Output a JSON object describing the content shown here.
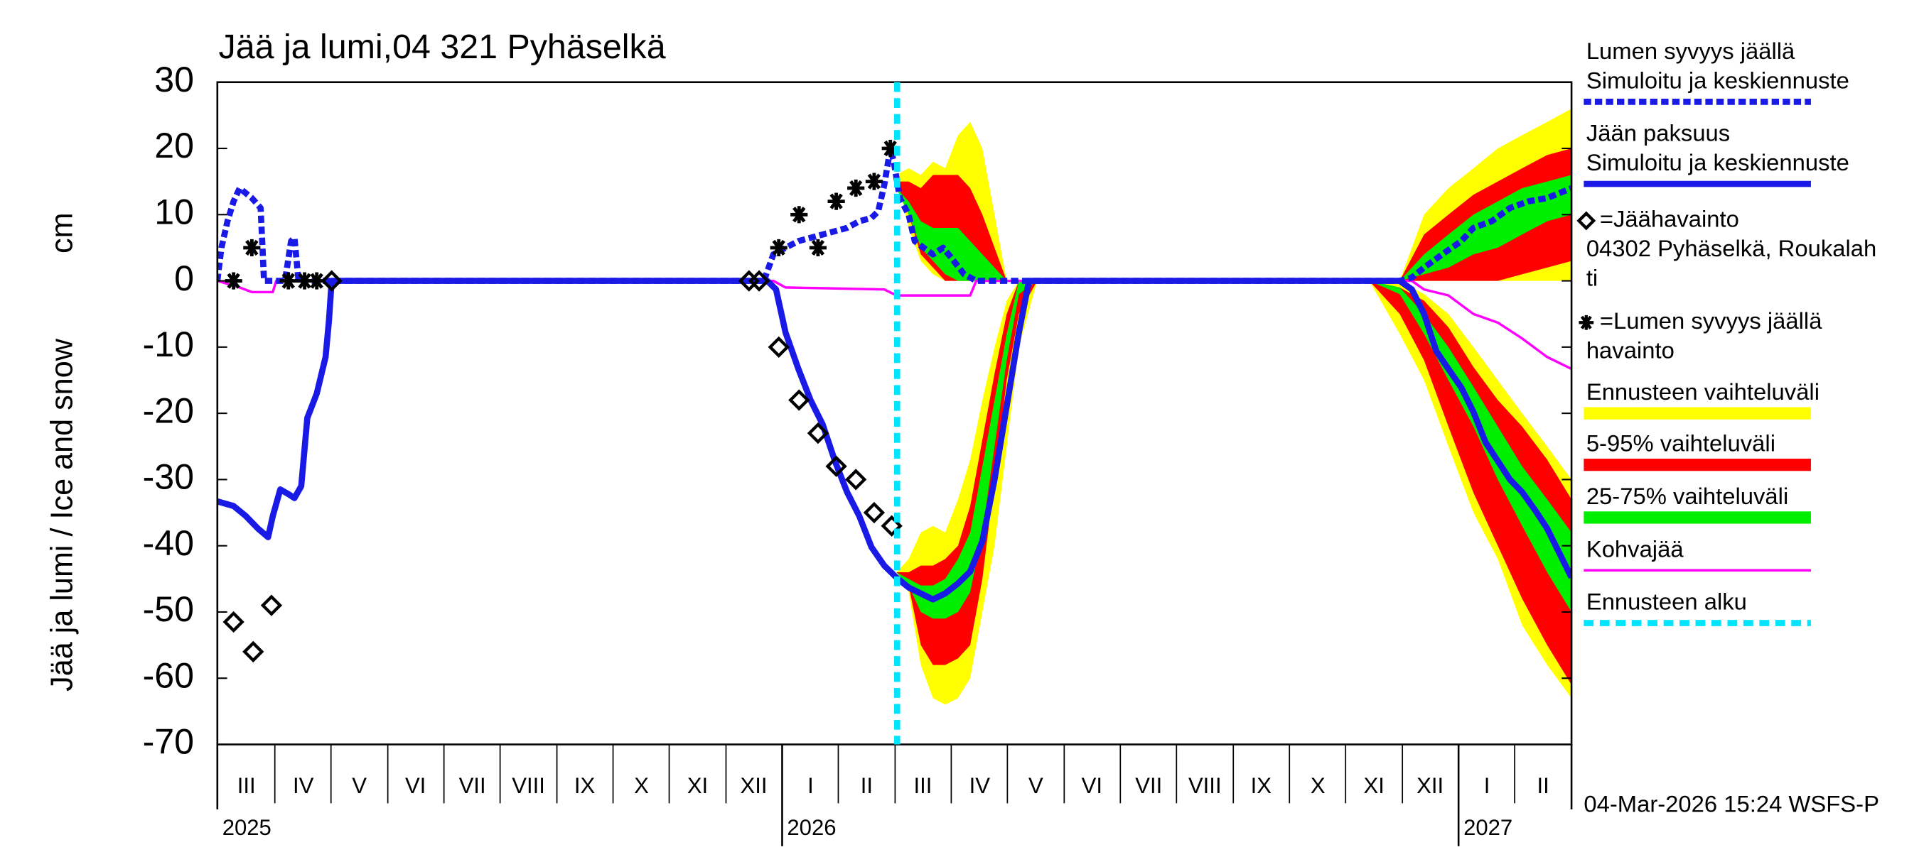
{
  "chart_data": {
    "type": "line",
    "title": "Jää ja lumi,04 321 Pyhäselkä",
    "y_label": "Jää ja lumi / Ice and snow",
    "y_unit": "cm",
    "footer": "04-Mar-2026 15:24 WSFS-P",
    "grid": false,
    "xlim": [
      2025.165,
      2027.167
    ],
    "ylim": [
      -70,
      30
    ],
    "yticks": [
      -70,
      -60,
      -50,
      -40,
      -30,
      -20,
      -10,
      0,
      10,
      20,
      30
    ],
    "xticks": [
      2025.25,
      2025.333,
      2025.417,
      2025.5,
      2025.583,
      2025.667,
      2025.75,
      2025.833,
      2025.917,
      2026,
      2026.083,
      2026.167,
      2026.25,
      2026.333,
      2026.417,
      2026.5,
      2026.583,
      2026.667,
      2026.75,
      2026.833,
      2026.917,
      2027,
      2027.083
    ],
    "month_labels": [
      {
        "value": 2025.208,
        "label": "III"
      },
      {
        "value": 2025.292,
        "label": "IV"
      },
      {
        "value": 2025.375,
        "label": "V"
      },
      {
        "value": 2025.458,
        "label": "VI"
      },
      {
        "value": 2025.542,
        "label": "VII"
      },
      {
        "value": 2025.625,
        "label": "VIII"
      },
      {
        "value": 2025.708,
        "label": "IX"
      },
      {
        "value": 2025.792,
        "label": "X"
      },
      {
        "value": 2025.875,
        "label": "XI"
      },
      {
        "value": 2025.958,
        "label": "XII"
      },
      {
        "value": 2026.042,
        "label": "I"
      },
      {
        "value": 2026.125,
        "label": "II"
      },
      {
        "value": 2026.208,
        "label": "III"
      },
      {
        "value": 2026.292,
        "label": "IV"
      },
      {
        "value": 2026.375,
        "label": "V"
      },
      {
        "value": 2026.458,
        "label": "VI"
      },
      {
        "value": 2026.542,
        "label": "VII"
      },
      {
        "value": 2026.625,
        "label": "VIII"
      },
      {
        "value": 2026.708,
        "label": "IX"
      },
      {
        "value": 2026.792,
        "label": "X"
      },
      {
        "value": 2026.875,
        "label": "XI"
      },
      {
        "value": 2026.958,
        "label": "XII"
      },
      {
        "value": 2027.042,
        "label": "I"
      },
      {
        "value": 2027.125,
        "label": "II"
      }
    ],
    "years": [
      2025,
      2026,
      2027
    ],
    "series": [
      {
        "name": [
          "Lumen syvyys jäällä",
          "Simuloitu ja keskiennuste"
        ],
        "color": "#1a1ae6",
        "style": "dashed",
        "x": [
          2025.165,
          2025.171,
          2025.18,
          2025.189,
          2025.198,
          2025.216,
          2025.229,
          2025.234,
          2025.265,
          2025.274,
          2025.279,
          2025.285,
          2025.973,
          2025.987,
          2026.005,
          2026.024,
          2026.042,
          2026.06,
          2026.078,
          2026.096,
          2026.114,
          2026.132,
          2026.142,
          2026.151,
          2026.16,
          2026.165,
          2026.174,
          2026.187,
          2026.196,
          2026.209,
          2026.223,
          2026.238,
          2026.25,
          2026.269,
          2026.287,
          2026.913,
          2026.931,
          2026.949,
          2026.976,
          2027.004,
          2027.022,
          2027.049,
          2027.076,
          2027.103,
          2027.131,
          2027.167
        ],
        "values": [
          0,
          5,
          9,
          12,
          14,
          12.5,
          11,
          0,
          0,
          6,
          6.5,
          0,
          0,
          4,
          5,
          6,
          6.5,
          7,
          7.5,
          8,
          9,
          9.5,
          10.5,
          14.5,
          20,
          18,
          12.5,
          10,
          6,
          5,
          4,
          5,
          3.5,
          1,
          0,
          0,
          0.5,
          2,
          4,
          6,
          8,
          9,
          11,
          12,
          12.5,
          14
        ]
      },
      {
        "name": [
          "Jään paksuus",
          "Simuloitu ja keskiennuste"
        ],
        "color": "#1a1ae6",
        "style": "solid",
        "x": [
          2025.165,
          2025.189,
          2025.207,
          2025.225,
          2025.24,
          2025.247,
          2025.258,
          2025.27,
          2025.279,
          2025.289,
          2025.298,
          2025.312,
          2025.325,
          2025.33,
          2025.334,
          2025.978,
          2025.991,
          2026.005,
          2026.024,
          2026.042,
          2026.06,
          2026.078,
          2026.096,
          2026.114,
          2026.132,
          2026.151,
          2026.169,
          2026.187,
          2026.205,
          2026.223,
          2026.241,
          2026.26,
          2026.278,
          2026.296,
          2026.314,
          2026.332,
          2026.35,
          2026.365,
          2026.913,
          2026.931,
          2026.949,
          2026.967,
          2026.985,
          2027.004,
          2027.022,
          2027.04,
          2027.058,
          2027.076,
          2027.094,
          2027.113,
          2027.131,
          2027.149,
          2027.167
        ],
        "values": [
          -33.3,
          -34,
          -35.5,
          -37.4,
          -38.7,
          -35.5,
          -31.5,
          -32.2,
          -32.8,
          -31,
          -20.7,
          -17,
          -11.5,
          -6,
          0,
          0,
          -1.3,
          -7.8,
          -13.3,
          -18,
          -21.7,
          -27.2,
          -31.9,
          -35.5,
          -40.2,
          -43,
          -44.8,
          -46.3,
          -47.2,
          -48.1,
          -47.2,
          -45.7,
          -43.9,
          -39.3,
          -30,
          -18.9,
          -7.8,
          0,
          0,
          -1.3,
          -5,
          -10.6,
          -13.3,
          -16.1,
          -19.8,
          -24.4,
          -27.2,
          -30,
          -31.9,
          -34.6,
          -37.4,
          -41.1,
          -44.8
        ]
      },
      {
        "name": [
          "Kohvajää"
        ],
        "color": "#ff00ff",
        "style": "thin",
        "x": [
          2025.165,
          2025.198,
          2025.216,
          2025.247,
          2025.252,
          2025.987,
          2026.005,
          2026.151,
          2026.169,
          2026.278,
          2026.287,
          2026.931,
          2026.949,
          2026.985,
          2027.022,
          2027.058,
          2027.094,
          2027.131,
          2027.167
        ],
        "values": [
          0,
          -1,
          -1.7,
          -1.7,
          0,
          0,
          -1,
          -1.3,
          -2.2,
          -2.2,
          0,
          0,
          -1.3,
          -2.2,
          -5,
          -6.3,
          -8.7,
          -11.5,
          -13.3
        ]
      }
    ],
    "observations": [
      {
        "name": [
          "=Jäähavainto",
          "04302 Pyhäselkä, Roukalah",
          "ti"
        ],
        "marker": "diamond",
        "color": "#000000",
        "x": [
          2025.189,
          2025.218,
          2025.245,
          2025.334,
          2025.951,
          2025.966,
          2025.995,
          2026.025,
          2026.053,
          2026.08,
          2026.109,
          2026.136,
          2026.162
        ],
        "values": [
          -51.5,
          -56,
          -49,
          0,
          0,
          0,
          -10,
          -18,
          -23,
          -28,
          -30,
          -35,
          -37
        ]
      },
      {
        "name": [
          "=Lumen syvyys jäällä",
          "havainto"
        ],
        "marker": "asterisk",
        "color": "#000000",
        "x": [
          2025.189,
          2025.216,
          2025.27,
          2025.294,
          2025.312,
          2025.995,
          2026.025,
          2026.053,
          2026.08,
          2026.109,
          2026.136,
          2026.16
        ],
        "values": [
          0,
          5,
          0,
          0,
          0,
          5,
          10,
          5,
          12,
          14,
          15,
          20
        ]
      }
    ],
    "bands": [
      {
        "name": [
          "Ennusteen vaihteluväli"
        ],
        "color": "#ffff00",
        "pieces": [
          {
            "x": [
              2026.169,
              2026.187,
              2026.205,
              2026.223,
              2026.241,
              2026.26,
              2026.278,
              2026.296,
              2026.314,
              2026.332,
              2026.35,
              2026.377
            ],
            "high": [
              -44,
              -42,
              -38,
              -37,
              -38,
              -33,
              -27,
              -18,
              -10,
              -3,
              0,
              0
            ],
            "low": [
              -44,
              -47,
              -58,
              -63,
              -64,
              -63,
              -60,
              -50,
              -40,
              -25,
              -10,
              0
            ]
          },
          {
            "x": [
              2026.169,
              2026.187,
              2026.205,
              2026.223,
              2026.241,
              2026.26,
              2026.278,
              2026.296,
              2026.314,
              2026.332
            ],
            "high": [
              16,
              17,
              16,
              18,
              17,
              22,
              24,
              20,
              10,
              0
            ],
            "low": [
              16,
              8,
              3,
              1,
              0,
              0,
              0,
              0,
              0,
              0
            ]
          },
          {
            "x": [
              2026.913,
              2026.949,
              2026.985,
              2027.022,
              2027.058,
              2027.094,
              2027.131,
              2027.167
            ],
            "high": [
              0,
              10,
              14,
              17,
              20,
              22,
              24,
              26
            ],
            "low": [
              0,
              0,
              0,
              0,
              0,
              0,
              0,
              0
            ]
          },
          {
            "x": [
              2026.868,
              2026.913,
              2026.949,
              2026.985,
              2027.022,
              2027.058,
              2027.094,
              2027.131,
              2027.167
            ],
            "high": [
              0,
              0,
              -2,
              -5,
              -10,
              -15,
              -20,
              -25,
              -30
            ],
            "low": [
              0,
              -8,
              -15,
              -25,
              -35,
              -42,
              -52,
              -58,
              -63
            ]
          }
        ]
      },
      {
        "name": [
          "5-95% vaihteluväli"
        ],
        "color": "#ff0000",
        "pieces": [
          {
            "x": [
              2026.169,
              2026.187,
              2026.205,
              2026.223,
              2026.241,
              2026.26,
              2026.278,
              2026.296,
              2026.314,
              2026.332,
              2026.35,
              2026.377
            ],
            "high": [
              -44,
              -44,
              -43,
              -43,
              -42,
              -40,
              -34,
              -24,
              -14,
              -5,
              0,
              0
            ],
            "low": [
              -44,
              -46,
              -55,
              -58,
              -58,
              -57,
              -55,
              -45,
              -30,
              -15,
              -5,
              0
            ]
          },
          {
            "x": [
              2026.169,
              2026.187,
              2026.205,
              2026.223,
              2026.241,
              2026.26,
              2026.278,
              2026.296,
              2026.314,
              2026.332
            ],
            "high": [
              15,
              15,
              14,
              16,
              16,
              16,
              14,
              10,
              5,
              0
            ],
            "low": [
              15,
              10,
              4,
              2,
              0,
              0,
              0,
              0,
              0,
              0
            ]
          },
          {
            "x": [
              2026.913,
              2026.949,
              2026.985,
              2027.022,
              2027.058,
              2027.094,
              2027.131,
              2027.167
            ],
            "high": [
              0,
              7,
              10,
              13,
              15,
              17,
              19,
              20
            ],
            "low": [
              0,
              0,
              0,
              0,
              0,
              1,
              2,
              3
            ]
          },
          {
            "x": [
              2026.868,
              2026.913,
              2026.949,
              2026.985,
              2027.022,
              2027.058,
              2027.094,
              2027.131,
              2027.167
            ],
            "high": [
              0,
              -1,
              -3,
              -7,
              -13,
              -18,
              -22,
              -27,
              -33
            ],
            "low": [
              0,
              -5,
              -12,
              -22,
              -32,
              -40,
              -48,
              -55,
              -61
            ]
          }
        ]
      },
      {
        "name": [
          "25-75% vaihteluväli"
        ],
        "color": "#00ee00",
        "pieces": [
          {
            "x": [
              2026.169,
              2026.187,
              2026.205,
              2026.223,
              2026.241,
              2026.26,
              2026.278,
              2026.296,
              2026.314,
              2026.332,
              2026.35,
              2026.377
            ],
            "high": [
              -44,
              -45,
              -46,
              -46,
              -45,
              -42,
              -38,
              -28,
              -18,
              -8,
              0,
              0
            ],
            "low": [
              -44,
              -46,
              -50,
              -51,
              -51,
              -50,
              -47,
              -38,
              -25,
              -12,
              -2,
              0
            ]
          },
          {
            "x": [
              2026.169,
              2026.187,
              2026.205,
              2026.223,
              2026.241,
              2026.26,
              2026.278,
              2026.296,
              2026.314,
              2026.332
            ],
            "high": [
              14,
              12,
              9,
              8,
              8,
              8,
              6,
              4,
              2,
              0
            ],
            "low": [
              14,
              10,
              5,
              3,
              1,
              0,
              0,
              0,
              0,
              0
            ]
          },
          {
            "x": [
              2026.913,
              2026.949,
              2026.985,
              2027.022,
              2027.058,
              2027.094,
              2027.131,
              2027.167
            ],
            "high": [
              0,
              4,
              7,
              10,
              12,
              14,
              15,
              16
            ],
            "low": [
              0,
              1,
              2,
              4,
              5,
              7,
              9,
              10
            ]
          },
          {
            "x": [
              2026.868,
              2026.913,
              2026.949,
              2026.985,
              2027.022,
              2027.058,
              2027.094,
              2027.131,
              2027.167
            ],
            "high": [
              0,
              -1,
              -5,
              -10,
              -16,
              -22,
              -28,
              -33,
              -38
            ],
            "low": [
              0,
              -2,
              -8,
              -15,
              -22,
              -30,
              -37,
              -44,
              -50
            ]
          }
        ]
      }
    ],
    "forecast_start": {
      "name": [
        "Ennusteen alku"
      ],
      "color": "#00e5ff",
      "x": 2026.17
    }
  }
}
